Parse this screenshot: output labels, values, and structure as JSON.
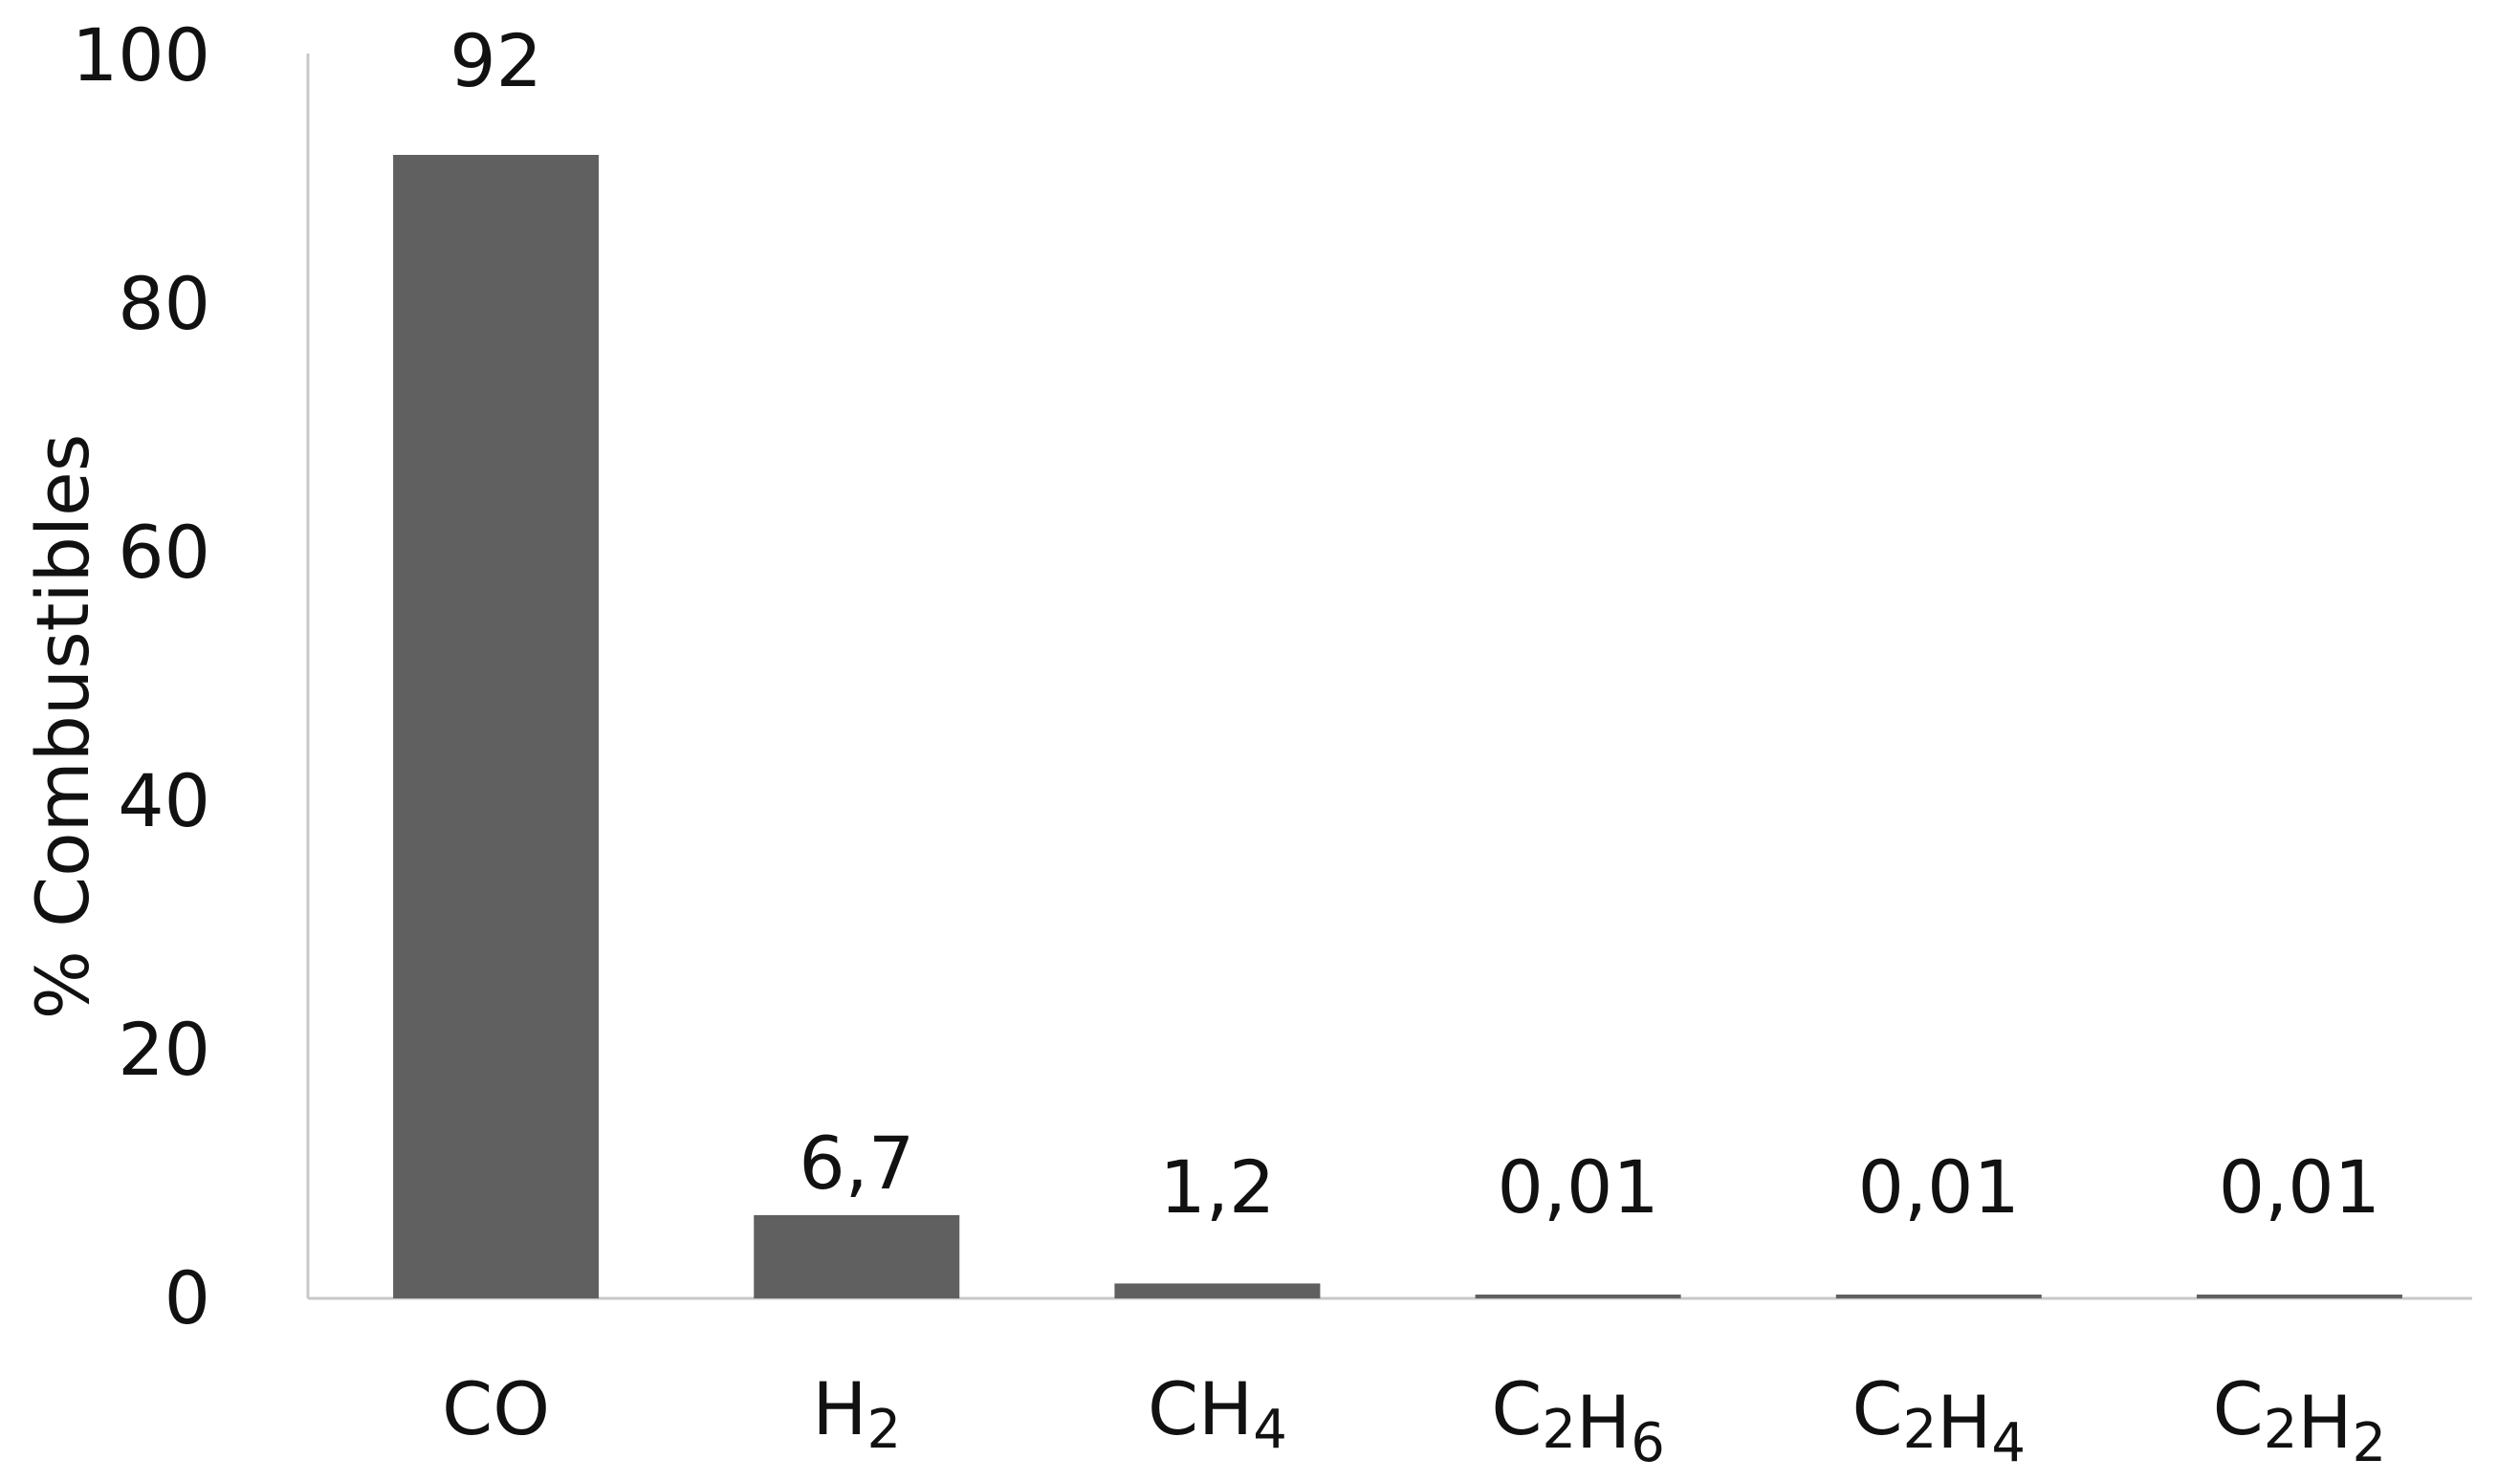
{
  "chart_data": {
    "type": "bar",
    "categories": [
      "CO",
      "H2",
      "CH4",
      "C2H6",
      "C2H4",
      "C2H2"
    ],
    "categories_display": [
      {
        "base": "CO",
        "parts": [
          {
            "t": "CO",
            "sub": false
          }
        ]
      },
      {
        "base": "H",
        "parts": [
          {
            "t": "H",
            "sub": false
          },
          {
            "t": "2",
            "sub": true
          }
        ]
      },
      {
        "base": "CH",
        "parts": [
          {
            "t": "CH",
            "sub": false
          },
          {
            "t": "4",
            "sub": true
          }
        ]
      },
      {
        "base": "C",
        "parts": [
          {
            "t": "C",
            "sub": false
          },
          {
            "t": "2",
            "sub": true
          },
          {
            "t": "H",
            "sub": false
          },
          {
            "t": "6",
            "sub": true
          }
        ]
      },
      {
        "base": "C",
        "parts": [
          {
            "t": "C",
            "sub": false
          },
          {
            "t": "2",
            "sub": true
          },
          {
            "t": "H",
            "sub": false
          },
          {
            "t": "4",
            "sub": true
          }
        ]
      },
      {
        "base": "C",
        "parts": [
          {
            "t": "C",
            "sub": false
          },
          {
            "t": "2",
            "sub": true
          },
          {
            "t": "H",
            "sub": false
          },
          {
            "t": "2",
            "sub": true
          }
        ]
      }
    ],
    "values": [
      92,
      6.7,
      1.2,
      0.01,
      0.01,
      0.01
    ],
    "value_labels": [
      "92",
      "6,7",
      "1,2",
      "0,01",
      "0,01",
      "0,01"
    ],
    "title": "",
    "xlabel": "",
    "ylabel": "% Combustibles",
    "ylim": [
      0,
      100
    ],
    "yticks": [
      0,
      20,
      40,
      60,
      80,
      100
    ],
    "grid": false,
    "bar_color": "#606060",
    "axis_color": "#c8c8c8"
  }
}
